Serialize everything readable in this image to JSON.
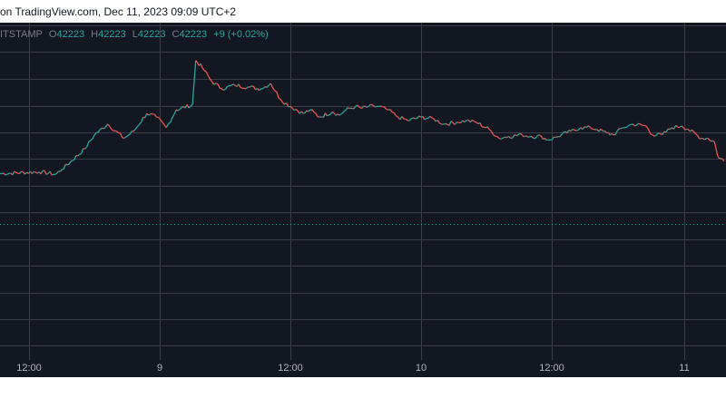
{
  "header": {
    "attribution": "on TradingView.com, Dec 11, 2023 09:09 UTC+2"
  },
  "legend": {
    "source": "ITSTAMP",
    "open_label": "O",
    "open_value": "42223",
    "high_label": "H",
    "high_value": "42223",
    "low_label": "L",
    "low_value": "42223",
    "close_label": "C",
    "close_value": "42223",
    "change": "+9 (+0.02%)"
  },
  "colors": {
    "background": "#131722",
    "grid": "#3a3d46",
    "up": "#26a69a",
    "down": "#ef5350",
    "text": "#b2b5be"
  },
  "chart_data": {
    "type": "line",
    "x_tick_labels": [
      "12:00",
      "9",
      "12:00",
      "10",
      "12:00",
      "11"
    ],
    "series": [
      {
        "values": [
          [
            0,
            45
          ],
          [
            1.2,
            45.5
          ],
          [
            1.7,
            44.8
          ],
          [
            1.9,
            46.2
          ],
          [
            2.6,
            52
          ],
          [
            2.9,
            56
          ],
          [
            3.3,
            59
          ],
          [
            3.8,
            55
          ],
          [
            4.1,
            57
          ],
          [
            4.5,
            62
          ],
          [
            4.8,
            61
          ],
          [
            5.1,
            58
          ],
          [
            5.4,
            63
          ],
          [
            5.9,
            64.5
          ],
          [
            6.0,
            77
          ],
          [
            6.2,
            75
          ],
          [
            6.5,
            71
          ],
          [
            6.8,
            69
          ],
          [
            7.2,
            70
          ],
          [
            7.6,
            69.5
          ],
          [
            8.0,
            69
          ],
          [
            8.3,
            70.5
          ],
          [
            8.6,
            66
          ],
          [
            8.9,
            64
          ],
          [
            9.3,
            62
          ],
          [
            9.5,
            63
          ],
          [
            9.8,
            61
          ],
          [
            10.2,
            62.5
          ],
          [
            10.4,
            61.5
          ],
          [
            10.6,
            63
          ],
          [
            10.9,
            64
          ],
          [
            11.1,
            63.5
          ],
          [
            11.3,
            64
          ],
          [
            11.6,
            64
          ],
          [
            11.9,
            63
          ],
          [
            12.2,
            61
          ],
          [
            12.5,
            60
          ],
          [
            12.9,
            61
          ],
          [
            13.3,
            60.5
          ],
          [
            13.6,
            59
          ],
          [
            14.0,
            59.5
          ],
          [
            14.3,
            60
          ],
          [
            14.6,
            59.5
          ],
          [
            15.0,
            57.5
          ],
          [
            15.3,
            55
          ],
          [
            15.6,
            55.5
          ],
          [
            16.0,
            56
          ],
          [
            16.3,
            55.5
          ],
          [
            16.6,
            55.5
          ],
          [
            16.8,
            54.5
          ],
          [
            17.1,
            55.5
          ],
          [
            17.5,
            57
          ],
          [
            17.8,
            58
          ],
          [
            18.1,
            58
          ],
          [
            18.3,
            57.5
          ],
          [
            18.6,
            56.5
          ],
          [
            18.8,
            56
          ],
          [
            19.1,
            58
          ],
          [
            19.4,
            59
          ],
          [
            19.8,
            58.5
          ],
          [
            20.0,
            56
          ],
          [
            20.3,
            56
          ],
          [
            20.6,
            58
          ],
          [
            20.9,
            58.5
          ],
          [
            21.1,
            57.5
          ],
          [
            21.5,
            55
          ],
          [
            21.7,
            55
          ],
          [
            21.9,
            54
          ],
          [
            22.0,
            50
          ],
          [
            22.2,
            48.5
          ]
        ]
      }
    ],
    "grid": true
  }
}
